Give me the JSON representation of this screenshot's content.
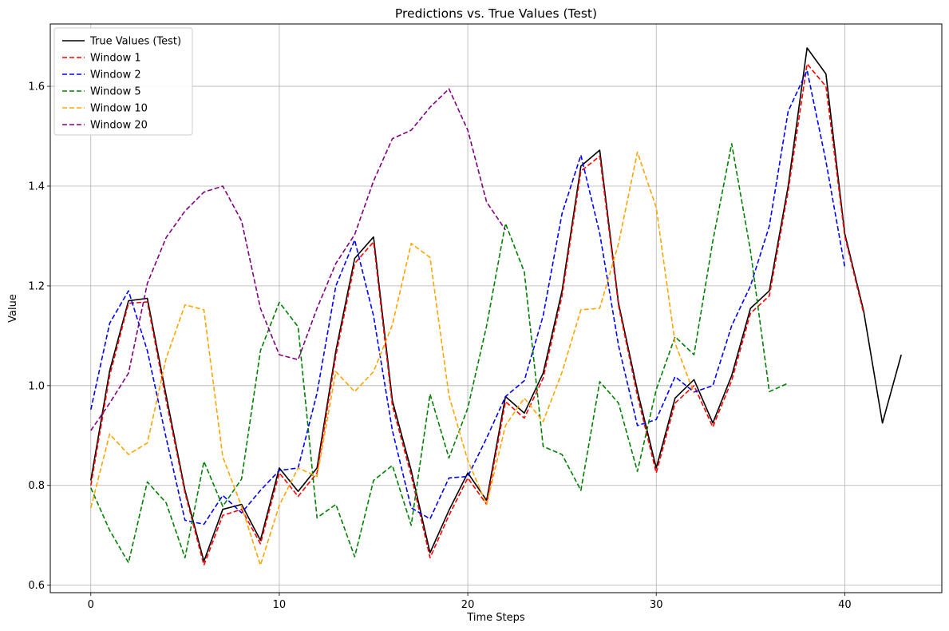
{
  "chart_data": {
    "type": "line",
    "title": "Predictions vs. True Values (Test)",
    "xlabel": "Time Steps",
    "ylabel": "Value",
    "xlim": [
      -2.15,
      45.15
    ],
    "ylim": [
      0.585,
      1.725
    ],
    "xticks": [
      0,
      10,
      20,
      30,
      40
    ],
    "yticks": [
      0.6,
      0.8,
      1.0,
      1.2,
      1.4,
      1.6
    ],
    "ytick_labels": [
      "0.6",
      "0.8",
      "1.0",
      "1.2",
      "1.4",
      "1.6"
    ],
    "grid": true,
    "legend_position": "top-left",
    "series": [
      {
        "name": "True Values (Test)",
        "color": "#000000",
        "dashed": false,
        "x0": 0,
        "values": [
          0.81,
          1.03,
          1.17,
          1.175,
          0.98,
          0.79,
          0.648,
          0.752,
          0.762,
          0.69,
          0.835,
          0.788,
          0.835,
          1.07,
          1.255,
          1.298,
          0.97,
          0.83,
          0.665,
          0.75,
          0.825,
          0.77,
          0.978,
          0.945,
          1.025,
          1.19,
          1.44,
          1.472,
          1.165,
          0.99,
          0.835,
          0.975,
          1.012,
          0.925,
          1.02,
          1.155,
          1.19,
          1.4,
          1.677,
          1.625,
          1.305,
          1.15,
          0.925,
          1.062
        ]
      },
      {
        "name": "Window 1",
        "color": "#ff0000",
        "dashed": true,
        "x0": 0,
        "values": [
          0.8,
          1.02,
          1.165,
          1.168,
          0.97,
          0.785,
          0.64,
          0.74,
          0.752,
          0.683,
          0.825,
          0.778,
          0.825,
          1.06,
          1.245,
          1.288,
          0.96,
          0.82,
          0.655,
          0.74,
          0.815,
          0.762,
          0.968,
          0.935,
          1.015,
          1.18,
          1.43,
          1.46,
          1.16,
          0.98,
          0.825,
          0.965,
          1.0,
          0.917,
          1.01,
          1.145,
          1.18,
          1.39,
          1.645,
          1.6,
          1.3,
          1.145
        ]
      },
      {
        "name": "Window 2",
        "color": "#0000ff",
        "dashed": true,
        "x0": 0,
        "values": [
          0.952,
          1.125,
          1.19,
          1.07,
          0.895,
          0.73,
          0.722,
          0.78,
          0.745,
          0.79,
          0.83,
          0.835,
          0.985,
          1.2,
          1.292,
          1.14,
          0.91,
          0.755,
          0.733,
          0.815,
          0.818,
          0.895,
          0.978,
          1.01,
          1.14,
          1.345,
          1.462,
          1.305,
          1.08,
          0.92,
          0.932,
          1.018,
          0.987,
          1.0,
          1.12,
          1.2,
          1.32,
          1.55,
          1.632,
          1.45,
          1.238
        ]
      },
      {
        "name": "Window 5",
        "color": "#008000",
        "dashed": true,
        "x0": 0,
        "values": [
          0.795,
          0.71,
          0.645,
          0.807,
          0.765,
          0.655,
          0.848,
          0.758,
          0.813,
          1.07,
          1.167,
          1.118,
          0.735,
          0.762,
          0.657,
          0.81,
          0.84,
          0.72,
          0.983,
          0.855,
          0.955,
          1.12,
          1.325,
          1.228,
          0.878,
          0.862,
          0.79,
          1.008,
          0.965,
          0.828,
          0.992,
          1.098,
          1.062,
          1.29,
          1.485,
          1.27,
          0.988,
          1.005
        ]
      },
      {
        "name": "Window 10",
        "color": "#ffa500",
        "dashed": true,
        "x0": 0,
        "values": [
          0.755,
          0.903,
          0.862,
          0.885,
          1.055,
          1.162,
          1.152,
          0.857,
          0.758,
          0.64,
          0.76,
          0.835,
          0.818,
          1.028,
          0.988,
          1.028,
          1.122,
          1.285,
          1.257,
          0.98,
          0.85,
          0.762,
          0.92,
          0.975,
          0.928,
          1.027,
          1.152,
          1.155,
          1.285,
          1.468,
          1.357,
          1.085,
          0.985
        ]
      },
      {
        "name": "Window 20",
        "color": "#800080",
        "dashed": true,
        "x0": 0,
        "values": [
          0.91,
          0.965,
          1.025,
          1.205,
          1.297,
          1.35,
          1.388,
          1.4,
          1.33,
          1.155,
          1.062,
          1.052,
          1.155,
          1.245,
          1.303,
          1.41,
          1.495,
          1.512,
          1.558,
          1.595,
          1.512,
          1.368,
          1.312
        ]
      }
    ]
  }
}
